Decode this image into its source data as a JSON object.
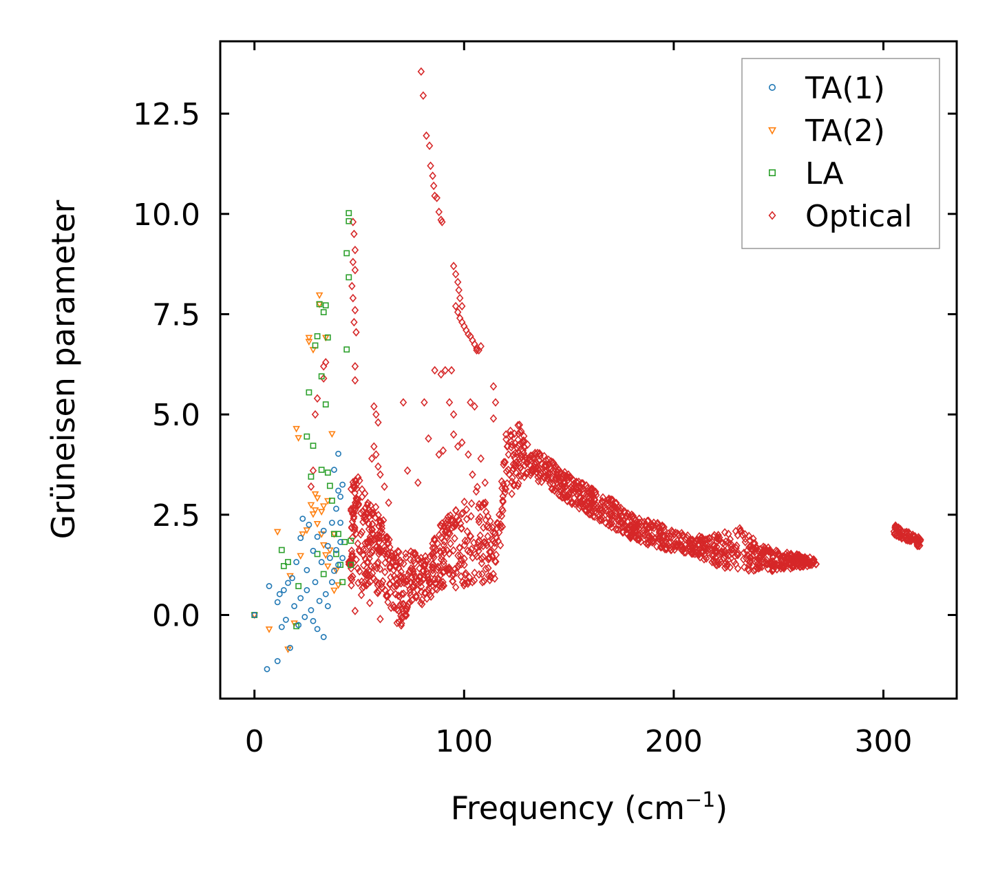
{
  "chart_data": {
    "type": "scatter",
    "title": "",
    "xlabel": "Frequency (cm",
    "xlabel_sup": "−1",
    "xlabel_close": ")",
    "ylabel": "Grüneisen parameter",
    "xlim": [
      -16,
      336
    ],
    "ylim": [
      -2.1,
      14.3
    ],
    "xticks": [
      0,
      100,
      200,
      300
    ],
    "xtick_labels": [
      "0",
      "100",
      "200",
      "300"
    ],
    "yticks": [
      0.0,
      2.5,
      5.0,
      7.5,
      10.0,
      12.5
    ],
    "ytick_labels": [
      "0.0",
      "2.5",
      "5.0",
      "7.5",
      "10.0",
      "12.5"
    ],
    "legend_position": "top-right",
    "series": [
      {
        "name": "TA(1)",
        "marker": "circle",
        "color": "#1f77b4",
        "x": [
          0,
          6,
          7,
          11,
          11,
          12,
          13,
          14,
          15,
          16,
          17,
          18,
          19,
          20,
          21,
          22,
          22,
          23,
          24,
          25,
          25,
          26,
          27,
          28,
          28,
          29,
          30,
          30,
          31,
          32,
          33,
          33,
          34,
          35,
          35,
          36,
          37,
          37,
          38,
          38,
          39,
          39,
          40,
          40,
          40,
          41,
          41,
          41,
          42,
          42
        ],
        "y": [
          0.0,
          -1.35,
          0.72,
          -1.15,
          0.32,
          0.52,
          -0.3,
          0.62,
          -0.12,
          0.8,
          -0.82,
          0.92,
          0.22,
          1.32,
          -0.25,
          1.92,
          0.42,
          2.4,
          -0.05,
          1.12,
          0.62,
          2.25,
          0.12,
          1.6,
          -0.15,
          0.82,
          -0.35,
          1.95,
          0.35,
          1.32,
          -0.55,
          2.1,
          0.52,
          1.72,
          0.22,
          1.42,
          2.3,
          0.82,
          1.1,
          3.62,
          2.65,
          1.62,
          4.02,
          3.1,
          1.25,
          2.3,
          1.82,
          2.95,
          1.42,
          3.25
        ]
      },
      {
        "name": "TA(2)",
        "marker": "triangle-down",
        "color": "#ff7f0e",
        "x": [
          0,
          7,
          11,
          16,
          17,
          19,
          20,
          21,
          22,
          23,
          25,
          26,
          26,
          27,
          28,
          28,
          29,
          29,
          30,
          30,
          31,
          31,
          32,
          32,
          33,
          33,
          34,
          34,
          35,
          35,
          36,
          37,
          38,
          38,
          39,
          40
        ],
        "y": [
          0.0,
          -0.35,
          2.08,
          -0.85,
          0.98,
          -0.2,
          4.65,
          4.42,
          1.48,
          2.02,
          2.12,
          6.82,
          6.92,
          2.75,
          2.52,
          6.62,
          3.02,
          2.62,
          2.92,
          2.28,
          7.98,
          7.75,
          2.58,
          2.02,
          2.72,
          1.75,
          6.92,
          1.5,
          2.85,
          1.22,
          1.62,
          4.52,
          2.02,
          0.62,
          1.12,
          0.75
        ]
      },
      {
        "name": "LA",
        "marker": "square",
        "color": "#2ca02c",
        "x": [
          0,
          13,
          14,
          16,
          20,
          21,
          25,
          26,
          27,
          28,
          29,
          30,
          30,
          31,
          32,
          32,
          33,
          33,
          34,
          34,
          35,
          35,
          36,
          37,
          38,
          39,
          40,
          41,
          42,
          43,
          44,
          44,
          45,
          45,
          45,
          46,
          46
        ],
        "y": [
          0.0,
          1.62,
          1.22,
          1.32,
          -0.28,
          0.72,
          4.45,
          5.55,
          3.45,
          4.22,
          6.72,
          6.95,
          1.52,
          7.75,
          5.95,
          3.62,
          7.55,
          1.02,
          5.25,
          7.72,
          3.55,
          6.92,
          3.22,
          2.85,
          2.02,
          1.52,
          2.02,
          1.25,
          0.82,
          1.82,
          9.02,
          6.62,
          8.42,
          9.82,
          10.02,
          1.25,
          1.85
        ]
      },
      {
        "name": "Optical",
        "marker": "diamond",
        "color": "#d62728",
        "x": [],
        "y": []
      }
    ]
  }
}
